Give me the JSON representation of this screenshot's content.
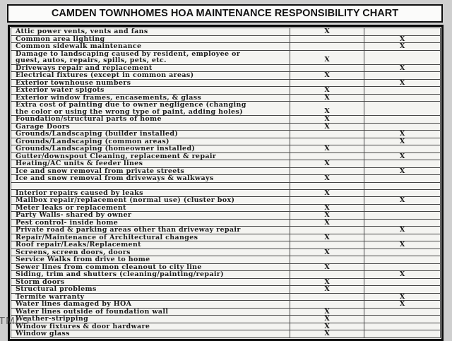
{
  "title": "CAMDEN TOWNHOMES HOA MAINTENANCE RESPONSIBILITY CHART",
  "watermark": "TMLS",
  "table": {
    "rows": [
      {
        "item": "Attic power vents, vents and fans",
        "c1": "X",
        "c2": ""
      },
      {
        "item": "Common area lighting",
        "c1": "",
        "c2": "X"
      },
      {
        "item": "Common sidewalk maintenance",
        "c1": "",
        "c2": "X"
      },
      {
        "item": "Damage to landscaping caused by resident, employee or\nguest, autos, repairs, spills, pets, etc.",
        "c1": "X",
        "c2": ""
      },
      {
        "item": "Driveways repair and replacement",
        "c1": "",
        "c2": "X"
      },
      {
        "item": "Electrical fixtures (except in common areas)",
        "c1": "X",
        "c2": ""
      },
      {
        "item": "Exterior townhouse numbers",
        "c1": "",
        "c2": "X"
      },
      {
        "item": "Exterior water spigots",
        "c1": "X",
        "c2": ""
      },
      {
        "item": "Exterior window frames, encasements, & glass",
        "c1": "X",
        "c2": ""
      },
      {
        "item": "Extra cost of painting due to owner negligence (changing\nthe color or using the wrong type of paint, adding holes)",
        "c1": "X",
        "c2": ""
      },
      {
        "item": "Foundation/structural parts of home",
        "c1": "X",
        "c2": ""
      },
      {
        "item": "Garage Doors",
        "c1": "X",
        "c2": ""
      },
      {
        "item": "Grounds/Landscaping (builder installed)",
        "c1": "",
        "c2": "X"
      },
      {
        "item": "Grounds/Landscaping (common areas)",
        "c1": "",
        "c2": "X"
      },
      {
        "item": "Grounds/Landscaping (homeowner installed)",
        "c1": "X",
        "c2": ""
      },
      {
        "item": "Gutter/downspout Cleaning, replacement & repair",
        "c1": "",
        "c2": "X"
      },
      {
        "item": "Heating/AC units & feeder lines",
        "c1": "X",
        "c2": ""
      },
      {
        "item": "Ice and snow removal from private streets",
        "c1": "",
        "c2": "X"
      },
      {
        "item": "Ice and snow removal from driveways & walkways",
        "c1": "X",
        "c2": ""
      },
      {
        "item": "",
        "c1": "",
        "c2": ""
      },
      {
        "item": "Interior repairs caused by leaks",
        "c1": "X",
        "c2": ""
      },
      {
        "item": "Mailbox repair/replacement (normal use) (cluster box)",
        "c1": "",
        "c2": "X"
      },
      {
        "item": "Meter leaks or replacement",
        "c1": "X",
        "c2": ""
      },
      {
        "item": "Party Walls- shared by owner",
        "c1": "X",
        "c2": ""
      },
      {
        "item": "Pest control- inside home",
        "c1": "X",
        "c2": ""
      },
      {
        "item": "Private road & parking areas other than driveway repair",
        "c1": "",
        "c2": "X"
      },
      {
        "item": "Repair/Maintenance of Architectural changes",
        "c1": "X",
        "c2": ""
      },
      {
        "item": "Roof repair/Leaks/Replacement",
        "c1": "",
        "c2": "X"
      },
      {
        "item": "Screens, screen doors, doors",
        "c1": "X",
        "c2": ""
      },
      {
        "item": "Service Walks from drive to home",
        "c1": "",
        "c2": ""
      },
      {
        "item": "Sewer lines from common cleanout to city line",
        "c1": "X",
        "c2": ""
      },
      {
        "item": "Siding, trim and shutters (cleaning/painting/repair)",
        "c1": "",
        "c2": "X"
      },
      {
        "item": "Storm doors",
        "c1": "X",
        "c2": ""
      },
      {
        "item": "Structural problems",
        "c1": "X",
        "c2": ""
      },
      {
        "item": "Termite warranty",
        "c1": "",
        "c2": "X"
      },
      {
        "item": "Water lines damaged by HOA",
        "c1": "",
        "c2": "X"
      },
      {
        "item": "Water lines outside of foundation wall",
        "c1": "X",
        "c2": ""
      },
      {
        "item": "Weather-stripping",
        "c1": "X",
        "c2": ""
      },
      {
        "item": "Window fixtures & door hardware",
        "c1": "X",
        "c2": ""
      },
      {
        "item": "Window glass",
        "c1": "X",
        "c2": ""
      }
    ]
  }
}
